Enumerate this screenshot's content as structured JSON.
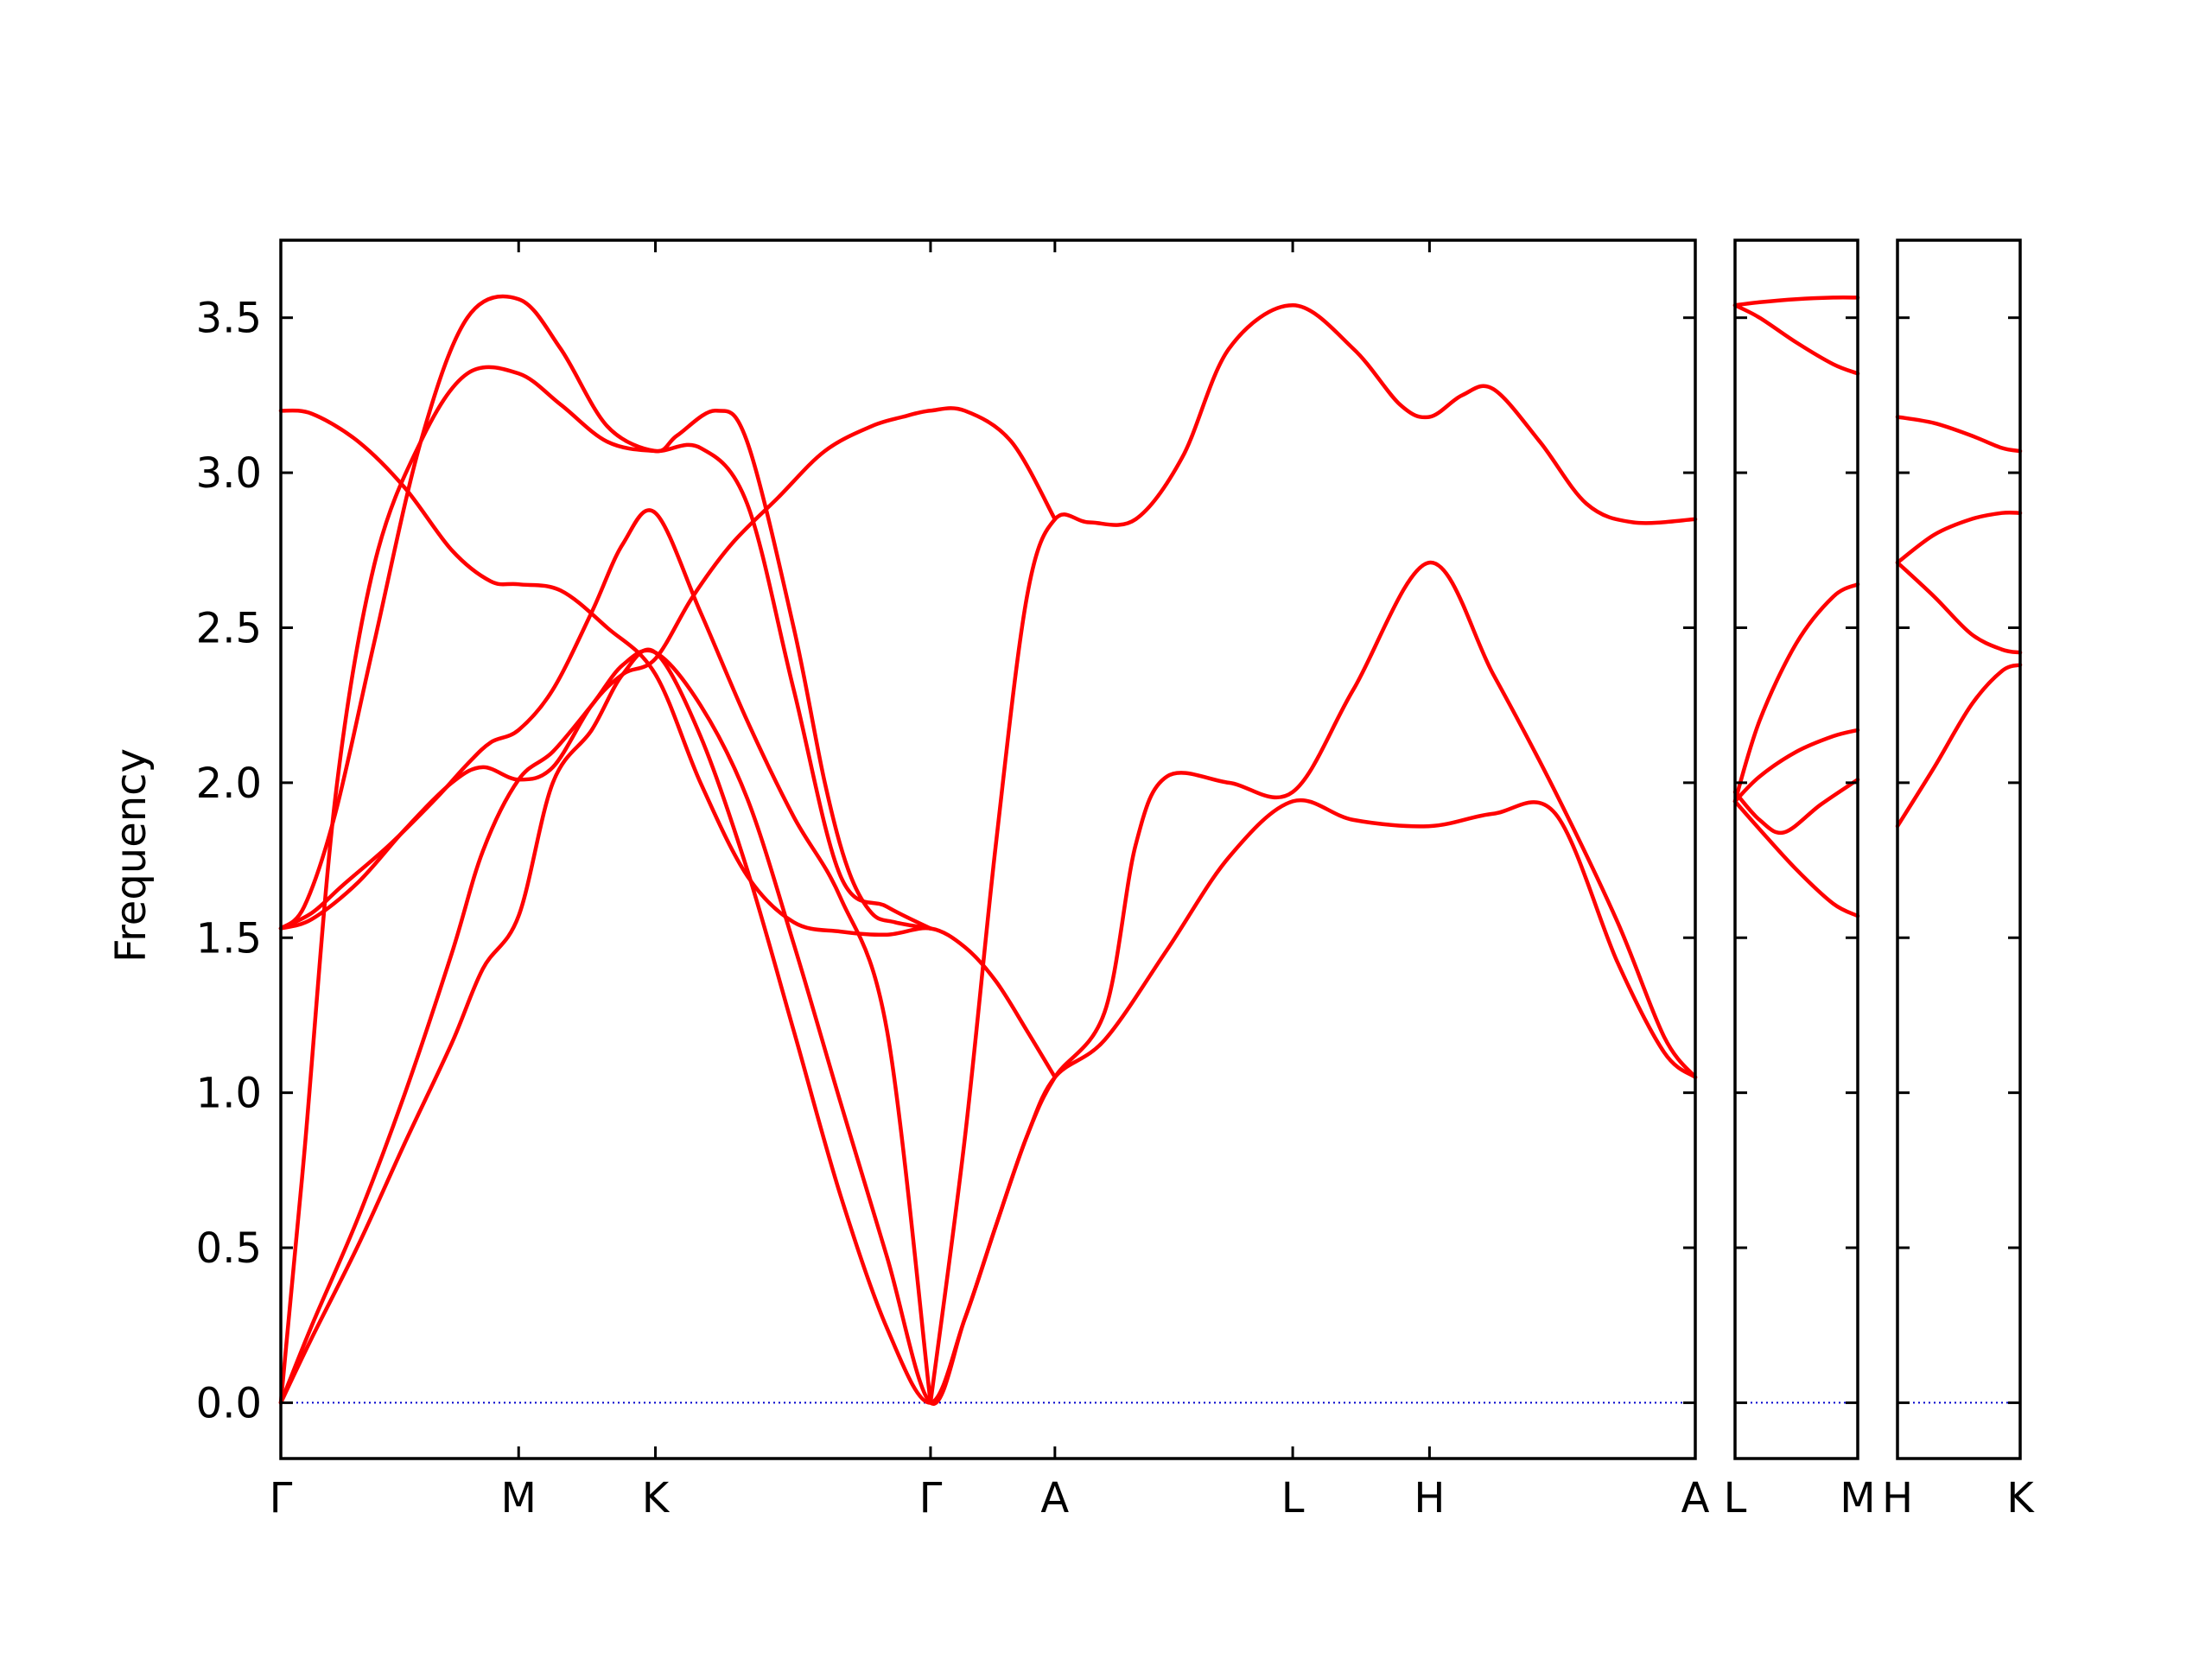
{
  "chart_data": {
    "type": "line",
    "title": "",
    "ylabel": "Frequency",
    "ylim": [
      -0.18,
      3.75
    ],
    "yticks": [
      0.0,
      0.5,
      1.0,
      1.5,
      2.0,
      2.5,
      3.0,
      3.5
    ],
    "ytick_labels": [
      "0.0",
      "0.5",
      "1.0",
      "1.5",
      "2.0",
      "2.5",
      "3.0",
      "3.5"
    ],
    "line_color": "#ff0000",
    "zero_line_color": "#0000cc",
    "grid": false,
    "legend": "none",
    "panels": [
      {
        "xlim": [
          0,
          9.1
        ],
        "ticks": [
          {
            "x": 0,
            "label": "Γ"
          },
          {
            "x": 1.53,
            "label": "M"
          },
          {
            "x": 2.41,
            "label": "K"
          },
          {
            "x": 4.18,
            "label": "Γ"
          },
          {
            "x": 4.98,
            "label": "A"
          },
          {
            "x": 6.51,
            "label": "L"
          },
          {
            "x": 7.39,
            "label": "H"
          },
          {
            "x": 9.1,
            "label": "A"
          }
        ],
        "series": [
          {
            "x": [
              0,
              0.2,
              0.5,
              0.8,
              1.1,
              1.3,
              1.53,
              1.75,
              2.0,
              2.2,
              2.41,
              2.7,
              3.0,
              3.3,
              3.6,
              3.9,
              4.18,
              4.4,
              4.6,
              4.8,
              4.98,
              5.3,
              5.7,
              6.1,
              6.51,
              6.9,
              7.39,
              7.8,
              8.2,
              8.6,
              8.9,
              9.1
            ],
            "values": [
              0,
              0.21,
              0.51,
              0.84,
              1.16,
              1.4,
              1.57,
              2.0,
              2.17,
              2.35,
              2.42,
              2.15,
              1.72,
              1.2,
              0.67,
              0.24,
              0,
              0.27,
              0.57,
              0.86,
              1.05,
              1.17,
              1.46,
              1.76,
              1.94,
              1.88,
              1.86,
              1.9,
              1.9,
              1.42,
              1.13,
              1.05
            ]
          },
          {
            "x": [
              0,
              0.2,
              0.5,
              0.8,
              1.1,
              1.3,
              1.53,
              1.75,
              2.0,
              2.2,
              2.41,
              2.7,
              3.0,
              3.3,
              3.6,
              3.9,
              4.18,
              4.4,
              4.6,
              4.8,
              4.98,
              5.3,
              5.5,
              5.7,
              6.1,
              6.51,
              6.9,
              7.39,
              7.8,
              8.2,
              8.6,
              8.9,
              9.1
            ],
            "values": [
              0,
              0.25,
              0.6,
              1.0,
              1.45,
              1.78,
              2.01,
              2.1,
              2.25,
              2.38,
              2.42,
              2.25,
              1.95,
              1.48,
              0.97,
              0.47,
              0,
              0.27,
              0.57,
              0.86,
              1.05,
              1.26,
              1.8,
              2.02,
              2.0,
              1.97,
              2.3,
              2.71,
              2.35,
              1.97,
              1.55,
              1.18,
              1.05
            ]
          },
          {
            "x": [
              0,
              0.2,
              0.4,
              0.7,
              1.0,
              1.2,
              1.35,
              1.53,
              1.75,
              2.0,
              2.2,
              2.41,
              2.7,
              3.0,
              3.3,
              3.6,
              3.9,
              4.18
            ],
            "values": [
              1.53,
              1.58,
              1.67,
              1.8,
              1.95,
              2.06,
              2.13,
              2.17,
              2.3,
              2.55,
              2.77,
              2.87,
              2.55,
              2.2,
              1.89,
              1.63,
              1.2,
              0
            ],
            "note": "c"
          },
          {
            "x": [
              0,
              0.2,
              0.5,
              0.8,
              1.1,
              1.3,
              1.53,
              1.75,
              2.0,
              2.2,
              2.41,
              2.65,
              2.9,
              3.2,
              3.5,
              3.8,
              4.0,
              4.18,
              4.4,
              4.7,
              4.98
            ],
            "values": [
              1.53,
              1.56,
              1.68,
              1.85,
              2.0,
              2.05,
              2.01,
              2.05,
              2.25,
              2.35,
              2.4,
              2.6,
              2.77,
              2.92,
              3.07,
              3.15,
              3.18,
              3.2,
              3.2,
              3.1,
              2.85
            ],
            "note": "d"
          },
          {
            "x": [
              0,
              0.15,
              0.35,
              0.6,
              0.9,
              1.2,
              1.53,
              1.8,
              2.1,
              2.41,
              2.7,
              3.0,
              3.3,
              3.6,
              3.9,
              4.18
            ],
            "values": [
              0,
              0.8,
              1.95,
              2.7,
              3.1,
              3.32,
              3.32,
              3.22,
              3.1,
              3.07,
              3.08,
              2.9,
              2.3,
              1.7,
              1.6,
              1.53
            ],
            "note": "e"
          },
          {
            "x": [
              0,
              0.15,
              0.35,
              0.6,
              0.9,
              1.2,
              1.53,
              1.8,
              2.1,
              2.41,
              2.55,
              2.8,
              3.0,
              3.3,
              3.5,
              3.65,
              3.8,
              3.95,
              4.18
            ],
            "values": [
              1.53,
              1.6,
              1.9,
              2.45,
              3.1,
              3.5,
              3.56,
              3.4,
              3.15,
              3.07,
              3.12,
              3.2,
              3.1,
              2.5,
              2.0,
              1.72,
              1.58,
              1.55,
              1.53
            ],
            "note": "f"
          },
          {
            "x": [
              0,
              0.2,
              0.5,
              0.8,
              1.1,
              1.35,
              1.53,
              1.8,
              2.1,
              2.41,
              2.7,
              3.0,
              3.3,
              3.6,
              3.9,
              4.18,
              4.4,
              4.6,
              4.8,
              4.98
            ],
            "values": [
              3.2,
              3.19,
              3.1,
              2.95,
              2.75,
              2.65,
              2.64,
              2.62,
              2.5,
              2.35,
              2.0,
              1.7,
              1.55,
              1.52,
              1.51,
              1.53,
              1.47,
              1.36,
              1.2,
              1.05
            ],
            "note": "g"
          },
          {
            "x": [
              4.18,
              4.4,
              4.6,
              4.8,
              4.98,
              5.2,
              5.5,
              5.8,
              6.1,
              6.51,
              6.9,
              7.2,
              7.39,
              7.6,
              7.8,
              8.1,
              8.4,
              8.7,
              9.1
            ],
            "values": [
              0,
              0.85,
              1.8,
              2.6,
              2.85,
              2.84,
              2.85,
              3.05,
              3.4,
              3.54,
              3.4,
              3.22,
              3.18,
              3.25,
              3.27,
              3.1,
              2.9,
              2.84,
              2.85
            ],
            "note": "h"
          }
        ]
      },
      {
        "xlim": [
          0,
          1
        ],
        "ticks": [
          {
            "x": 0,
            "label": "L"
          },
          {
            "x": 1,
            "label": "M"
          }
        ],
        "series": [
          {
            "x": [
              0,
              0.2,
              0.5,
              0.8,
              1
            ],
            "values": [
              3.54,
              3.55,
              3.56,
              3.565,
              3.565
            ]
          },
          {
            "x": [
              0,
              0.2,
              0.5,
              0.8,
              1
            ],
            "values": [
              3.54,
              3.5,
              3.42,
              3.35,
              3.32
            ]
          },
          {
            "x": [
              0,
              0.2,
              0.5,
              0.8,
              1
            ],
            "values": [
              1.94,
              2.2,
              2.45,
              2.6,
              2.64
            ]
          },
          {
            "x": [
              0,
              0.2,
              0.5,
              0.8,
              1
            ],
            "values": [
              1.94,
              2.02,
              2.1,
              2.15,
              2.17
            ]
          },
          {
            "x": [
              0,
              0.2,
              0.4,
              0.7,
              1
            ],
            "values": [
              1.97,
              1.88,
              1.84,
              1.93,
              2.01
            ]
          },
          {
            "x": [
              0,
              0.2,
              0.5,
              0.8,
              1
            ],
            "values": [
              1.94,
              1.85,
              1.72,
              1.61,
              1.57
            ]
          }
        ]
      },
      {
        "xlim": [
          0,
          1
        ],
        "ticks": [
          {
            "x": 0,
            "label": "H"
          },
          {
            "x": 1,
            "label": "K"
          }
        ],
        "series": [
          {
            "x": [
              0,
              0.3,
              0.6,
              0.85,
              1
            ],
            "values": [
              3.18,
              3.16,
              3.12,
              3.08,
              3.07
            ]
          },
          {
            "x": [
              0,
              0.3,
              0.6,
              0.85,
              1
            ],
            "values": [
              2.71,
              2.8,
              2.85,
              2.87,
              2.87
            ]
          },
          {
            "x": [
              0,
              0.3,
              0.6,
              0.85,
              1
            ],
            "values": [
              2.71,
              2.6,
              2.48,
              2.43,
              2.42
            ]
          },
          {
            "x": [
              0,
              0.3,
              0.6,
              0.85,
              1
            ],
            "values": [
              1.86,
              2.05,
              2.25,
              2.36,
              2.38
            ]
          }
        ]
      }
    ]
  }
}
